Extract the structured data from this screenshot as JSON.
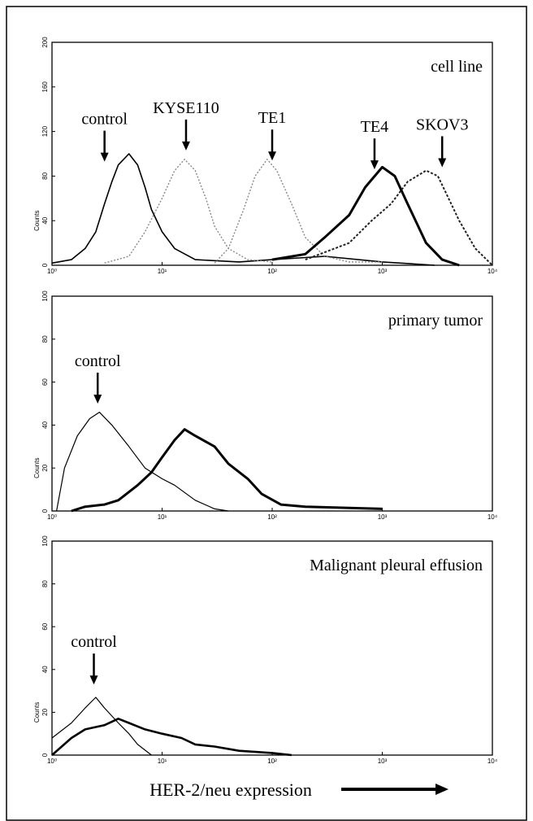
{
  "chart_data": [
    {
      "type": "line",
      "label": "cell line",
      "ylabel": "Counts",
      "log_x": true,
      "xlim": [
        1,
        10000
      ],
      "ylim": [
        0,
        200
      ],
      "xticks": [
        {
          "value": 1,
          "label": "10⁰"
        },
        {
          "value": 10,
          "label": "10¹"
        },
        {
          "value": 100,
          "label": "10²"
        },
        {
          "value": 1000,
          "label": "10³"
        },
        {
          "value": 10000,
          "label": "10⁴"
        }
      ],
      "yticks": [
        0,
        40,
        80,
        120,
        160,
        200
      ],
      "annotations": [
        {
          "text": "control",
          "x": 3,
          "y": 93
        },
        {
          "text": "KYSE110",
          "x": 16.5,
          "y": 103
        },
        {
          "text": "TE1",
          "x": 100,
          "y": 94
        },
        {
          "text": "TE4",
          "x": 850,
          "y": 86
        },
        {
          "text": "SKOV3",
          "x": 3500,
          "y": 88
        }
      ],
      "series": [
        {
          "color": "#000000",
          "line_width": 1.6,
          "dash": "none",
          "x": [
            1,
            1.5,
            2,
            2.5,
            3,
            3.5,
            4,
            5,
            6,
            7,
            8,
            10,
            13,
            20,
            50,
            100,
            300,
            1000,
            3000
          ],
          "values": [
            2,
            5,
            15,
            30,
            55,
            75,
            90,
            100,
            90,
            70,
            50,
            30,
            15,
            5,
            3,
            5,
            8,
            3,
            0
          ]
        },
        {
          "color": "#888888",
          "line_width": 1.4,
          "dash": "2 2",
          "x": [
            3,
            5,
            7,
            10,
            13,
            16,
            20,
            25,
            30,
            40,
            60,
            100
          ],
          "values": [
            2,
            8,
            30,
            60,
            85,
            95,
            85,
            60,
            35,
            15,
            5,
            3
          ]
        },
        {
          "color": "#888888",
          "line_width": 1.4,
          "dash": "2 2",
          "x": [
            30,
            40,
            55,
            70,
            90,
            110,
            150,
            200,
            300,
            500,
            1000
          ],
          "values": [
            2,
            15,
            50,
            80,
            95,
            85,
            55,
            25,
            8,
            3,
            3
          ]
        },
        {
          "color": "#000000",
          "line_width": 3,
          "dash": "none",
          "x": [
            100,
            200,
            300,
            500,
            700,
            1000,
            1300,
            1700,
            2500,
            3500,
            5000
          ],
          "values": [
            5,
            10,
            25,
            45,
            70,
            88,
            80,
            55,
            20,
            5,
            0
          ]
        },
        {
          "color": "#222222",
          "line_width": 2,
          "dash": "3 2",
          "x": [
            200,
            500,
            800,
            1200,
            1700,
            2500,
            3200,
            4000,
            5000,
            7000,
            10000
          ],
          "values": [
            5,
            20,
            40,
            55,
            75,
            85,
            80,
            60,
            40,
            15,
            0
          ]
        }
      ]
    },
    {
      "type": "line",
      "label": "primary tumor",
      "ylabel": "Counts",
      "log_x": true,
      "xlim": [
        1,
        10000
      ],
      "ylim": [
        0,
        100
      ],
      "xticks": [
        {
          "value": 1,
          "label": "10⁰"
        },
        {
          "value": 10,
          "label": "10¹"
        },
        {
          "value": 100,
          "label": "10²"
        },
        {
          "value": 1000,
          "label": "10³"
        },
        {
          "value": 10000,
          "label": "10⁴"
        }
      ],
      "yticks": [
        0,
        20,
        40,
        60,
        80,
        100
      ],
      "annotations": [
        {
          "text": "control",
          "x": 2.6,
          "y": 50
        }
      ],
      "series": [
        {
          "color": "#000000",
          "line_width": 1.2,
          "dash": "none",
          "x": [
            1.1,
            1.3,
            1.7,
            2.2,
            2.7,
            3.5,
            5,
            7,
            10,
            13,
            20,
            30,
            40
          ],
          "values": [
            0,
            20,
            35,
            43,
            46,
            40,
            30,
            20,
            15,
            12,
            5,
            1,
            0
          ]
        },
        {
          "color": "#000000",
          "line_width": 3,
          "dash": "none",
          "x": [
            1.5,
            2,
            3,
            4,
            6,
            8,
            10,
            13,
            16,
            20,
            30,
            40,
            60,
            80,
            120,
            200,
            1000
          ],
          "values": [
            0,
            2,
            3,
            5,
            12,
            18,
            25,
            33,
            38,
            35,
            30,
            22,
            15,
            8,
            3,
            2,
            1
          ]
        }
      ]
    },
    {
      "type": "line",
      "label": "Malignant pleural effusion",
      "ylabel": "Counts",
      "xlabel": "HER-2/neu expression",
      "log_x": true,
      "xlim": [
        1,
        10000
      ],
      "ylim": [
        0,
        100
      ],
      "xticks": [
        {
          "value": 1,
          "label": "10⁰"
        },
        {
          "value": 10,
          "label": "10¹"
        },
        {
          "value": 100,
          "label": "10²"
        },
        {
          "value": 1000,
          "label": "10³"
        },
        {
          "value": 10000,
          "label": "10⁴"
        }
      ],
      "yticks": [
        0,
        20,
        40,
        60,
        80,
        100
      ],
      "annotations": [
        {
          "text": "control",
          "x": 2.4,
          "y": 33
        }
      ],
      "series": [
        {
          "color": "#000000",
          "line_width": 1.2,
          "dash": "none",
          "x": [
            1,
            1.5,
            2,
            2.5,
            3,
            4,
            5,
            6,
            8
          ],
          "values": [
            8,
            15,
            22,
            27,
            22,
            15,
            10,
            5,
            0
          ]
        },
        {
          "color": "#000000",
          "line_width": 2.6,
          "dash": "none",
          "x": [
            1,
            1.5,
            2,
            3,
            4,
            5,
            7,
            10,
            15,
            20,
            30,
            50,
            100,
            150
          ],
          "values": [
            0,
            8,
            12,
            14,
            17,
            15,
            12,
            10,
            8,
            5,
            4,
            2,
            1,
            0
          ]
        }
      ]
    }
  ]
}
